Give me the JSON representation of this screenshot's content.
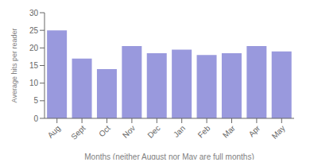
{
  "chart_data": {
    "type": "bar",
    "categories": [
      "Aug",
      "Sept",
      "Oct",
      "Nov",
      "Dec",
      "Jan",
      "Feb",
      "Mar",
      "Apr",
      "May"
    ],
    "values": [
      25,
      17,
      14,
      20.5,
      18.5,
      19.5,
      18,
      18.5,
      20.5,
      19
    ],
    "color": "#9999dd",
    "xlabel": "Months (neither August nor May are full months)",
    "ylabel": "Average hits per reader",
    "ylim": [
      0,
      30
    ],
    "yticks": [
      0,
      5,
      10,
      15,
      20,
      25,
      30
    ],
    "grid": false
  }
}
